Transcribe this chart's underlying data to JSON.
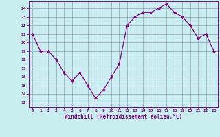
{
  "x": [
    0,
    1,
    2,
    3,
    4,
    5,
    6,
    7,
    8,
    9,
    10,
    11,
    12,
    13,
    14,
    15,
    16,
    17,
    18,
    19,
    20,
    21,
    22,
    23
  ],
  "y": [
    21,
    19,
    19,
    18,
    16.5,
    15.5,
    16.5,
    15,
    13.5,
    14.5,
    16,
    17.5,
    22,
    23,
    23.5,
    23.5,
    24,
    24.5,
    23.5,
    23,
    22,
    20.5,
    21,
    19
  ],
  "line_color": "#800080",
  "marker_color": "#800080",
  "bg_color": "#c8eef0",
  "grid_color": "#9999bb",
  "xlabel": "Windchill (Refroidissement éolien,°C)",
  "xlim": [
    -0.5,
    23.5
  ],
  "ylim": [
    12.5,
    24.8
  ],
  "yticks": [
    13,
    14,
    15,
    16,
    17,
    18,
    19,
    20,
    21,
    22,
    23,
    24
  ],
  "xticks": [
    0,
    1,
    2,
    3,
    4,
    5,
    6,
    7,
    8,
    9,
    10,
    11,
    12,
    13,
    14,
    15,
    16,
    17,
    18,
    19,
    20,
    21,
    22,
    23
  ],
  "tick_color": "#800080",
  "label_color": "#800080",
  "spine_color": "#800080"
}
